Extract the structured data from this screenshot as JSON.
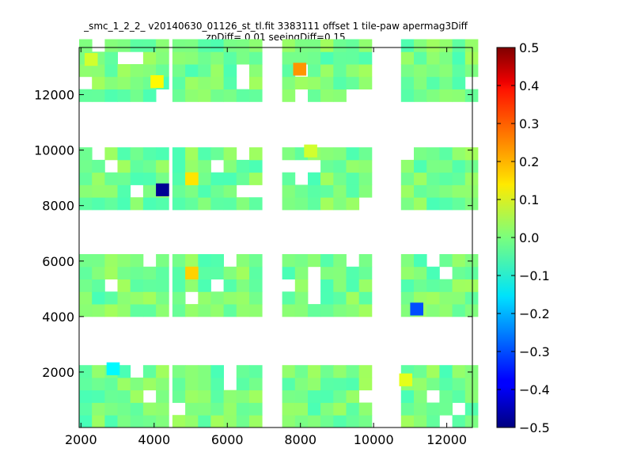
{
  "chart_data": {
    "type": "heatmap",
    "title": "_smc_1_2_2_ v20140630_01126_st_tl.fit 3383111 offset 1 tile-paw apermag3Diff",
    "subtitle": "zpDiff= 0.01 seeingDiff=0.15",
    "xlabel": "",
    "ylabel": "",
    "xlim": [
      1950,
      12700
    ],
    "ylim": [
      0,
      13700
    ],
    "xticks": [
      2000,
      4000,
      6000,
      8000,
      10000,
      12000
    ],
    "yticks": [
      2000,
      4000,
      6000,
      8000,
      10000,
      12000
    ],
    "colorbar": {
      "colormap": "jet",
      "range": [
        -0.5,
        0.5
      ],
      "ticks": [
        0.5,
        0.4,
        0.3,
        0.2,
        0.1,
        0.0,
        -0.1,
        -0.2,
        -0.3,
        -0.4,
        -0.5
      ],
      "tick_labels": [
        "0.5",
        "0.4",
        "0.3",
        "0.2",
        "0.1",
        "0.0",
        "−0.1",
        "−0.2",
        "−0.3",
        "−0.4",
        "−0.5"
      ]
    },
    "grid": false,
    "cell_size": [
      350,
      450
    ],
    "default_value": 0.0,
    "columns": [
      {
        "x0": 1950,
        "cols": 7
      },
      {
        "x0": 4500,
        "cols": 7
      },
      {
        "x0": 7500,
        "cols": 7
      },
      {
        "x0": 10750,
        "cols": 6
      }
    ],
    "rows": [
      {
        "y0": 0,
        "rows": 5
      },
      {
        "y0": 4000,
        "rows": 5
      },
      {
        "y0": 7850,
        "rows": 5
      },
      {
        "y0": 11750,
        "rows": 5
      }
    ],
    "outliers": [
      {
        "x": 2700,
        "y": 1900,
        "value": -0.13
      },
      {
        "x": 3900,
        "y": 12250,
        "value": 0.13
      },
      {
        "x": 4050,
        "y": 8350,
        "value": -0.48
      },
      {
        "x": 4850,
        "y": 8750,
        "value": 0.15
      },
      {
        "x": 4850,
        "y": 5350,
        "value": 0.17
      },
      {
        "x": 7800,
        "y": 12700,
        "value": 0.23
      },
      {
        "x": 11000,
        "y": 4050,
        "value": -0.3
      },
      {
        "x": 10700,
        "y": 1500,
        "value": 0.1
      },
      {
        "x": 2100,
        "y": 13050,
        "value": 0.08
      },
      {
        "x": 8100,
        "y": 9750,
        "value": 0.08
      }
    ]
  }
}
